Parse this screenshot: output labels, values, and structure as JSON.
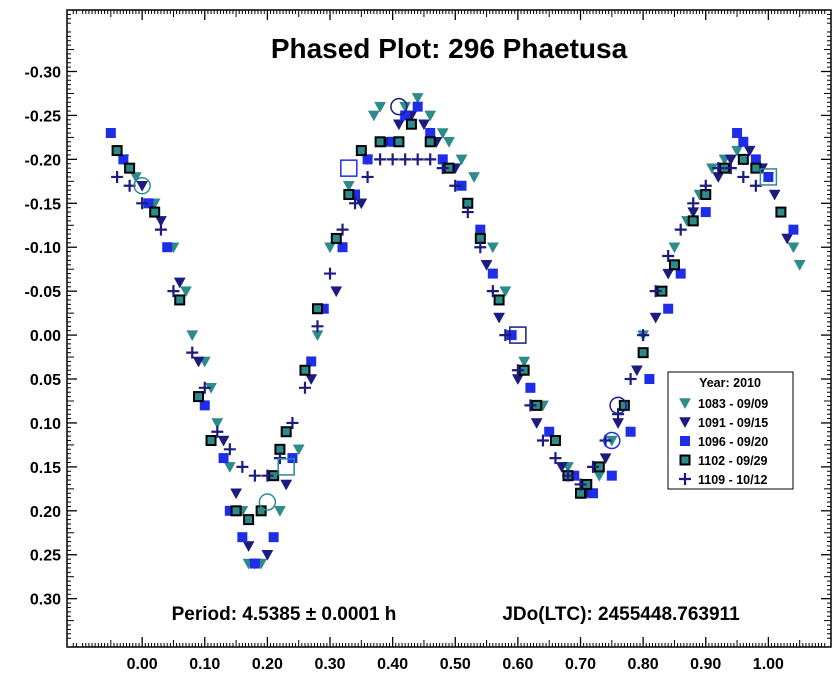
{
  "chart_data": {
    "type": "scatter",
    "title": "Phased Plot: 296 Phaetusa",
    "annotations": {
      "period": "Period: 4.5385 ± 0.0001 h",
      "jdo": "JDo(LTC): 2455448.763911"
    },
    "xlabel": "",
    "ylabel": "",
    "xlim": [
      -0.12,
      1.1
    ],
    "ylim": [
      -0.37,
      0.355
    ],
    "y_inverted": true,
    "grid": false,
    "x_ticks": [
      "0.00",
      "0.10",
      "0.20",
      "0.30",
      "0.40",
      "0.50",
      "0.60",
      "0.70",
      "0.80",
      "0.90",
      "1.00"
    ],
    "y_ticks": [
      "-0.30",
      "-0.25",
      "-0.20",
      "-0.15",
      "-0.10",
      "-0.05",
      "0.00",
      "0.05",
      "0.10",
      "0.15",
      "0.20",
      "0.25",
      "0.30"
    ],
    "legend": {
      "title": "Year: 2010",
      "position": "right-middle",
      "entries": [
        "1083 - 09/09",
        "1091 - 09/15",
        "1096 - 09/20",
        "1102 - 09/29",
        "1109 - 10/12"
      ]
    },
    "series": [
      {
        "name": "1083 - 09/09",
        "marker": "triangle-down",
        "color": "#2e8b8b",
        "x": [
          -0.03,
          -0.01,
          0.02,
          0.05,
          0.07,
          0.08,
          0.1,
          0.11,
          0.12,
          0.14,
          0.16,
          0.17,
          0.19,
          0.22,
          0.25,
          0.28,
          0.3,
          0.33,
          0.36,
          0.37,
          0.38,
          0.42,
          0.44,
          0.46,
          0.48,
          0.49,
          0.51,
          0.53,
          0.56,
          0.58,
          0.61,
          0.64,
          0.66,
          0.68,
          0.7,
          0.73,
          0.75,
          0.77,
          0.8,
          0.83,
          0.85,
          0.87,
          0.89,
          0.91,
          0.93,
          0.95,
          0.96,
          1.0,
          1.02,
          1.04,
          1.05
        ],
        "y": [
          -0.2,
          -0.18,
          -0.15,
          -0.1,
          -0.05,
          0.0,
          0.03,
          0.06,
          0.1,
          0.15,
          0.2,
          0.26,
          0.26,
          0.2,
          0.13,
          0.0,
          -0.1,
          -0.17,
          -0.2,
          -0.25,
          -0.26,
          -0.26,
          -0.27,
          -0.25,
          -0.23,
          -0.22,
          -0.2,
          -0.18,
          -0.1,
          -0.05,
          0.03,
          0.08,
          0.12,
          0.15,
          0.18,
          0.16,
          0.12,
          0.08,
          0.0,
          -0.05,
          -0.1,
          -0.13,
          -0.16,
          -0.19,
          -0.2,
          -0.21,
          -0.2,
          -0.18,
          -0.14,
          -0.1,
          -0.08
        ]
      },
      {
        "name": "1091 - 09/15",
        "marker": "triangle-down",
        "color": "#1c1c80",
        "x": [
          -0.02,
          0.0,
          0.03,
          0.06,
          0.09,
          0.13,
          0.15,
          0.17,
          0.18,
          0.2,
          0.23,
          0.27,
          0.31,
          0.35,
          0.39,
          0.41,
          0.43,
          0.45,
          0.47,
          0.5,
          0.52,
          0.55,
          0.57,
          0.6,
          0.63,
          0.67,
          0.71,
          0.74,
          0.76,
          0.79,
          0.82,
          0.84,
          0.88,
          0.92,
          0.94,
          0.97,
          0.99,
          1.01,
          1.03
        ],
        "y": [
          -0.19,
          -0.17,
          -0.13,
          -0.06,
          0.03,
          0.12,
          0.18,
          0.24,
          0.26,
          0.25,
          0.17,
          0.05,
          -0.05,
          -0.15,
          -0.22,
          -0.24,
          -0.25,
          -0.24,
          -0.22,
          -0.19,
          -0.15,
          -0.08,
          -0.02,
          0.05,
          0.1,
          0.15,
          0.18,
          0.14,
          0.1,
          0.04,
          -0.02,
          -0.07,
          -0.14,
          -0.18,
          -0.2,
          -0.21,
          -0.19,
          -0.16,
          -0.11
        ]
      },
      {
        "name": "1096 - 09/20",
        "marker": "square",
        "color": "#1e2ee8",
        "x": [
          -0.05,
          -0.03,
          0.01,
          0.04,
          0.06,
          0.1,
          0.13,
          0.14,
          0.16,
          0.18,
          0.21,
          0.24,
          0.27,
          0.29,
          0.32,
          0.34,
          0.36,
          0.4,
          0.42,
          0.44,
          0.46,
          0.48,
          0.51,
          0.54,
          0.56,
          0.59,
          0.62,
          0.65,
          0.69,
          0.72,
          0.75,
          0.78,
          0.81,
          0.84,
          0.86,
          0.9,
          0.93,
          0.95,
          0.96,
          0.98,
          1.0,
          1.04
        ],
        "y": [
          -0.23,
          -0.2,
          -0.15,
          -0.1,
          -0.04,
          0.08,
          0.14,
          0.2,
          0.23,
          0.26,
          0.23,
          0.14,
          0.03,
          -0.03,
          -0.1,
          -0.16,
          -0.2,
          -0.22,
          -0.25,
          -0.26,
          -0.23,
          -0.2,
          -0.17,
          -0.12,
          -0.07,
          0.0,
          0.06,
          0.11,
          0.16,
          0.18,
          0.16,
          0.11,
          0.05,
          -0.03,
          -0.07,
          -0.14,
          -0.19,
          -0.23,
          -0.22,
          -0.2,
          -0.18,
          -0.12
        ]
      },
      {
        "name": "1102 - 09/29",
        "marker": "square-filled",
        "color": "#2e8b8b",
        "x": [
          -0.04,
          -0.02,
          0.02,
          0.06,
          0.09,
          0.11,
          0.15,
          0.17,
          0.19,
          0.21,
          0.22,
          0.23,
          0.26,
          0.28,
          0.31,
          0.33,
          0.35,
          0.38,
          0.41,
          0.43,
          0.46,
          0.49,
          0.52,
          0.54,
          0.57,
          0.61,
          0.63,
          0.66,
          0.68,
          0.7,
          0.71,
          0.73,
          0.77,
          0.8,
          0.83,
          0.85,
          0.88,
          0.9,
          0.93,
          0.96,
          0.98,
          1.02
        ],
        "y": [
          -0.21,
          -0.19,
          -0.14,
          -0.04,
          0.07,
          0.12,
          0.2,
          0.21,
          0.2,
          0.16,
          0.13,
          0.11,
          0.04,
          -0.03,
          -0.11,
          -0.16,
          -0.21,
          -0.22,
          -0.22,
          -0.24,
          -0.22,
          -0.19,
          -0.15,
          -0.11,
          -0.04,
          0.04,
          0.08,
          0.12,
          0.16,
          0.18,
          0.17,
          0.15,
          0.08,
          0.02,
          -0.05,
          -0.08,
          -0.13,
          -0.16,
          -0.19,
          -0.2,
          -0.19,
          -0.14
        ]
      },
      {
        "name": "1109 - 10/12",
        "marker": "plus",
        "color": "#1c1c80",
        "x": [
          -0.04,
          -0.02,
          0.0,
          0.03,
          0.05,
          0.08,
          0.1,
          0.12,
          0.14,
          0.16,
          0.18,
          0.2,
          0.22,
          0.24,
          0.26,
          0.28,
          0.3,
          0.32,
          0.34,
          0.36,
          0.38,
          0.4,
          0.42,
          0.44,
          0.46,
          0.48,
          0.5,
          0.52,
          0.54,
          0.56,
          0.58,
          0.6,
          0.62,
          0.64,
          0.66,
          0.68,
          0.7,
          0.72,
          0.74,
          0.76,
          0.78,
          0.8,
          0.82,
          0.84,
          0.86,
          0.88,
          0.9,
          0.92,
          0.94,
          0.96,
          0.98
        ],
        "y": [
          -0.18,
          -0.17,
          -0.15,
          -0.12,
          -0.05,
          0.02,
          0.06,
          0.11,
          0.13,
          0.15,
          0.16,
          0.16,
          0.14,
          0.1,
          0.06,
          -0.01,
          -0.07,
          -0.12,
          -0.15,
          -0.18,
          -0.2,
          -0.2,
          -0.2,
          -0.2,
          -0.2,
          -0.19,
          -0.17,
          -0.14,
          -0.1,
          -0.05,
          0.0,
          0.04,
          0.08,
          0.12,
          0.14,
          0.16,
          0.17,
          0.15,
          0.12,
          0.09,
          0.05,
          0.0,
          -0.05,
          -0.09,
          -0.12,
          -0.15,
          -0.17,
          -0.19,
          -0.19,
          -0.18,
          -0.17
        ]
      }
    ],
    "highlighted_points": [
      {
        "x": 0.0,
        "y": -0.17,
        "shape": "circle",
        "color": "#2e8b8b"
      },
      {
        "x": 0.2,
        "y": 0.19,
        "shape": "circle",
        "color": "#2e8b8b"
      },
      {
        "x": 0.23,
        "y": 0.15,
        "shape": "square",
        "color": "#2e8b8b"
      },
      {
        "x": 0.33,
        "y": -0.19,
        "shape": "square",
        "color": "#1e2ee8"
      },
      {
        "x": 0.41,
        "y": -0.26,
        "shape": "circle",
        "color": "#1c1c80"
      },
      {
        "x": 0.6,
        "y": 0.0,
        "shape": "square",
        "color": "#1c1c80"
      },
      {
        "x": 0.75,
        "y": 0.12,
        "shape": "circle",
        "color": "#1e2ee8"
      },
      {
        "x": 0.76,
        "y": 0.08,
        "shape": "circle",
        "color": "#1c1c80"
      },
      {
        "x": 1.0,
        "y": -0.18,
        "shape": "square",
        "color": "#2e8b8b"
      }
    ]
  }
}
